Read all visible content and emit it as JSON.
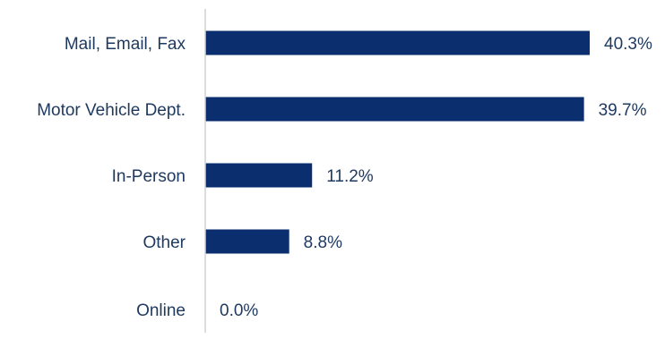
{
  "chart_data": {
    "type": "bar",
    "orientation": "horizontal",
    "categories": [
      "Mail, Email, Fax",
      "Motor Vehicle Dept.",
      "In-Person",
      "Other",
      "Online"
    ],
    "values": [
      40.3,
      39.7,
      11.2,
      8.8,
      0.0
    ],
    "value_labels": [
      "40.3%",
      "39.7%",
      "11.2%",
      "8.8%",
      "0.0%"
    ],
    "xlim": [
      0,
      40.3
    ],
    "grid": false,
    "legend": "none",
    "colors": {
      "bar": "#0a2e6e",
      "text": "#1f3a60",
      "axis": "#d0d0d0"
    }
  }
}
